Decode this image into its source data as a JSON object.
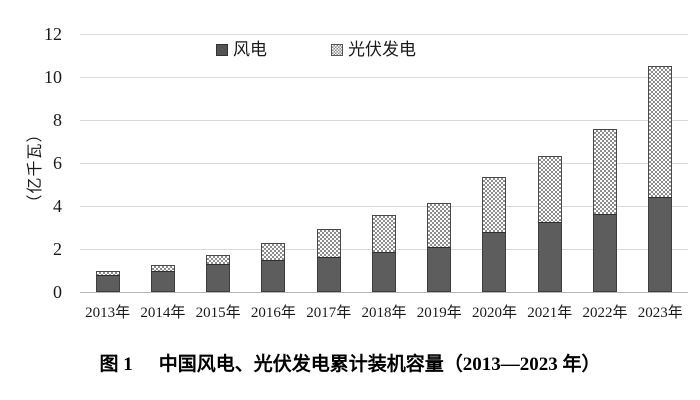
{
  "figure": {
    "caption_label": "图 1",
    "caption_title": "中国风电、光伏发电累计装机容量（2013—2023 年）"
  },
  "legend": {
    "wind": "风电",
    "solar": "光伏发电"
  },
  "y_axis": {
    "title": "（亿千瓦）"
  },
  "chart_data": {
    "type": "bar",
    "stacked": true,
    "title": "图 1 中国风电、光伏发电累计装机容量（2013—2023 年）",
    "ylabel": "（亿千瓦）",
    "xlabel": "",
    "ylim": [
      0,
      12
    ],
    "yticks": [
      0,
      2,
      4,
      6,
      8,
      10,
      12
    ],
    "grid": "horizontal",
    "legend_position": "top-center",
    "unit": "亿千瓦",
    "categories": [
      "2013年",
      "2014年",
      "2015年",
      "2016年",
      "2017年",
      "2018年",
      "2019年",
      "2020年",
      "2021年",
      "2022年",
      "2023年"
    ],
    "series": [
      {
        "name": "风电",
        "pattern": "solid",
        "color": "#5d5d5d",
        "values": [
          0.77,
          0.96,
          1.29,
          1.49,
          1.64,
          1.84,
          2.1,
          2.81,
          3.28,
          3.65,
          4.41
        ]
      },
      {
        "name": "光伏发电",
        "pattern": "checker",
        "color": "#c9c9c9",
        "values": [
          0.19,
          0.28,
          0.43,
          0.77,
          1.3,
          1.74,
          2.04,
          2.53,
          3.06,
          3.93,
          6.09
        ]
      }
    ],
    "stack_totals": [
      0.96,
      1.24,
      1.72,
      2.26,
      2.94,
      3.58,
      4.14,
      5.34,
      6.34,
      7.58,
      10.5
    ]
  }
}
